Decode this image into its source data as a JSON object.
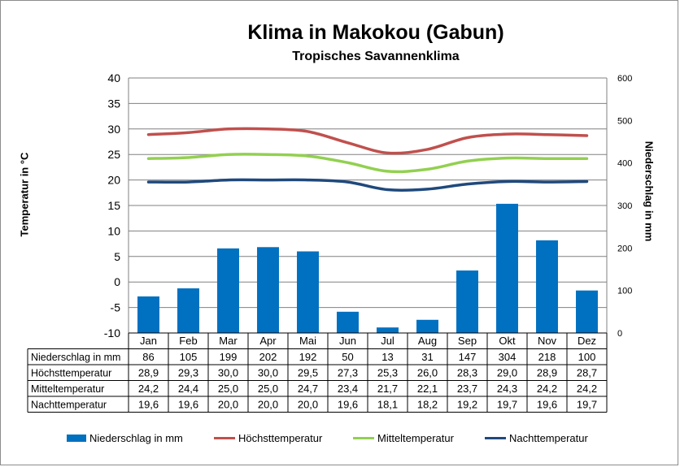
{
  "chart_data": {
    "type": "bar",
    "title": "Klima in Makokou (Gabun)",
    "subtitle": "Tropisches Savannenklima",
    "ylabel": "Temperatur in °C",
    "ylabel_right": "Niederschlag in mm",
    "ylim": [
      -10,
      40
    ],
    "ylim_right": [
      0,
      600
    ],
    "yticks": [
      -10,
      -5,
      0,
      5,
      10,
      15,
      20,
      25,
      30,
      35,
      40
    ],
    "yticks_right": [
      0,
      100,
      200,
      300,
      400,
      500,
      600
    ],
    "grid": true,
    "legend": "bottom",
    "categories": [
      "Jan",
      "Feb",
      "Mar",
      "Apr",
      "Mai",
      "Jun",
      "Jul",
      "Aug",
      "Sep",
      "Okt",
      "Nov",
      "Dez"
    ],
    "series": [
      {
        "name": "Niederschlag in mm",
        "type": "bar",
        "axis": "right",
        "color": "#0070c0",
        "values": [
          86,
          105,
          199,
          202,
          192,
          50,
          13,
          31,
          147,
          304,
          218,
          100
        ]
      },
      {
        "name": "Höchsttemperatur",
        "type": "line",
        "axis": "left",
        "color": "#c0504d",
        "values": [
          28.9,
          29.3,
          30.0,
          30.0,
          29.5,
          27.3,
          25.3,
          26.0,
          28.3,
          29.0,
          28.9,
          28.7
        ]
      },
      {
        "name": "Mitteltemperatur",
        "type": "line",
        "axis": "left",
        "color": "#92d050",
        "values": [
          24.2,
          24.4,
          25.0,
          25.0,
          24.7,
          23.4,
          21.7,
          22.1,
          23.7,
          24.3,
          24.2,
          24.2
        ]
      },
      {
        "name": "Nachttemperatur",
        "type": "line",
        "axis": "left",
        "color": "#1f497d",
        "values": [
          19.6,
          19.6,
          20.0,
          20.0,
          20.0,
          19.6,
          18.1,
          18.2,
          19.2,
          19.7,
          19.6,
          19.7
        ]
      }
    ],
    "table_rows": [
      {
        "label": "Niederschlag in mm",
        "cells": [
          "86",
          "105",
          "199",
          "202",
          "192",
          "50",
          "13",
          "31",
          "147",
          "304",
          "218",
          "100"
        ]
      },
      {
        "label": "Höchsttemperatur",
        "cells": [
          "28,9",
          "29,3",
          "30,0",
          "30,0",
          "29,5",
          "27,3",
          "25,3",
          "26,0",
          "28,3",
          "29,0",
          "28,9",
          "28,7"
        ]
      },
      {
        "label": "Mitteltemperatur",
        "cells": [
          "24,2",
          "24,4",
          "25,0",
          "25,0",
          "24,7",
          "23,4",
          "21,7",
          "22,1",
          "23,7",
          "24,3",
          "24,2",
          "24,2"
        ]
      },
      {
        "label": "Nachttemperatur",
        "cells": [
          "19,6",
          "19,6",
          "20,0",
          "20,0",
          "20,0",
          "19,6",
          "18,1",
          "18,2",
          "19,2",
          "19,7",
          "19,6",
          "19,7"
        ]
      }
    ]
  }
}
